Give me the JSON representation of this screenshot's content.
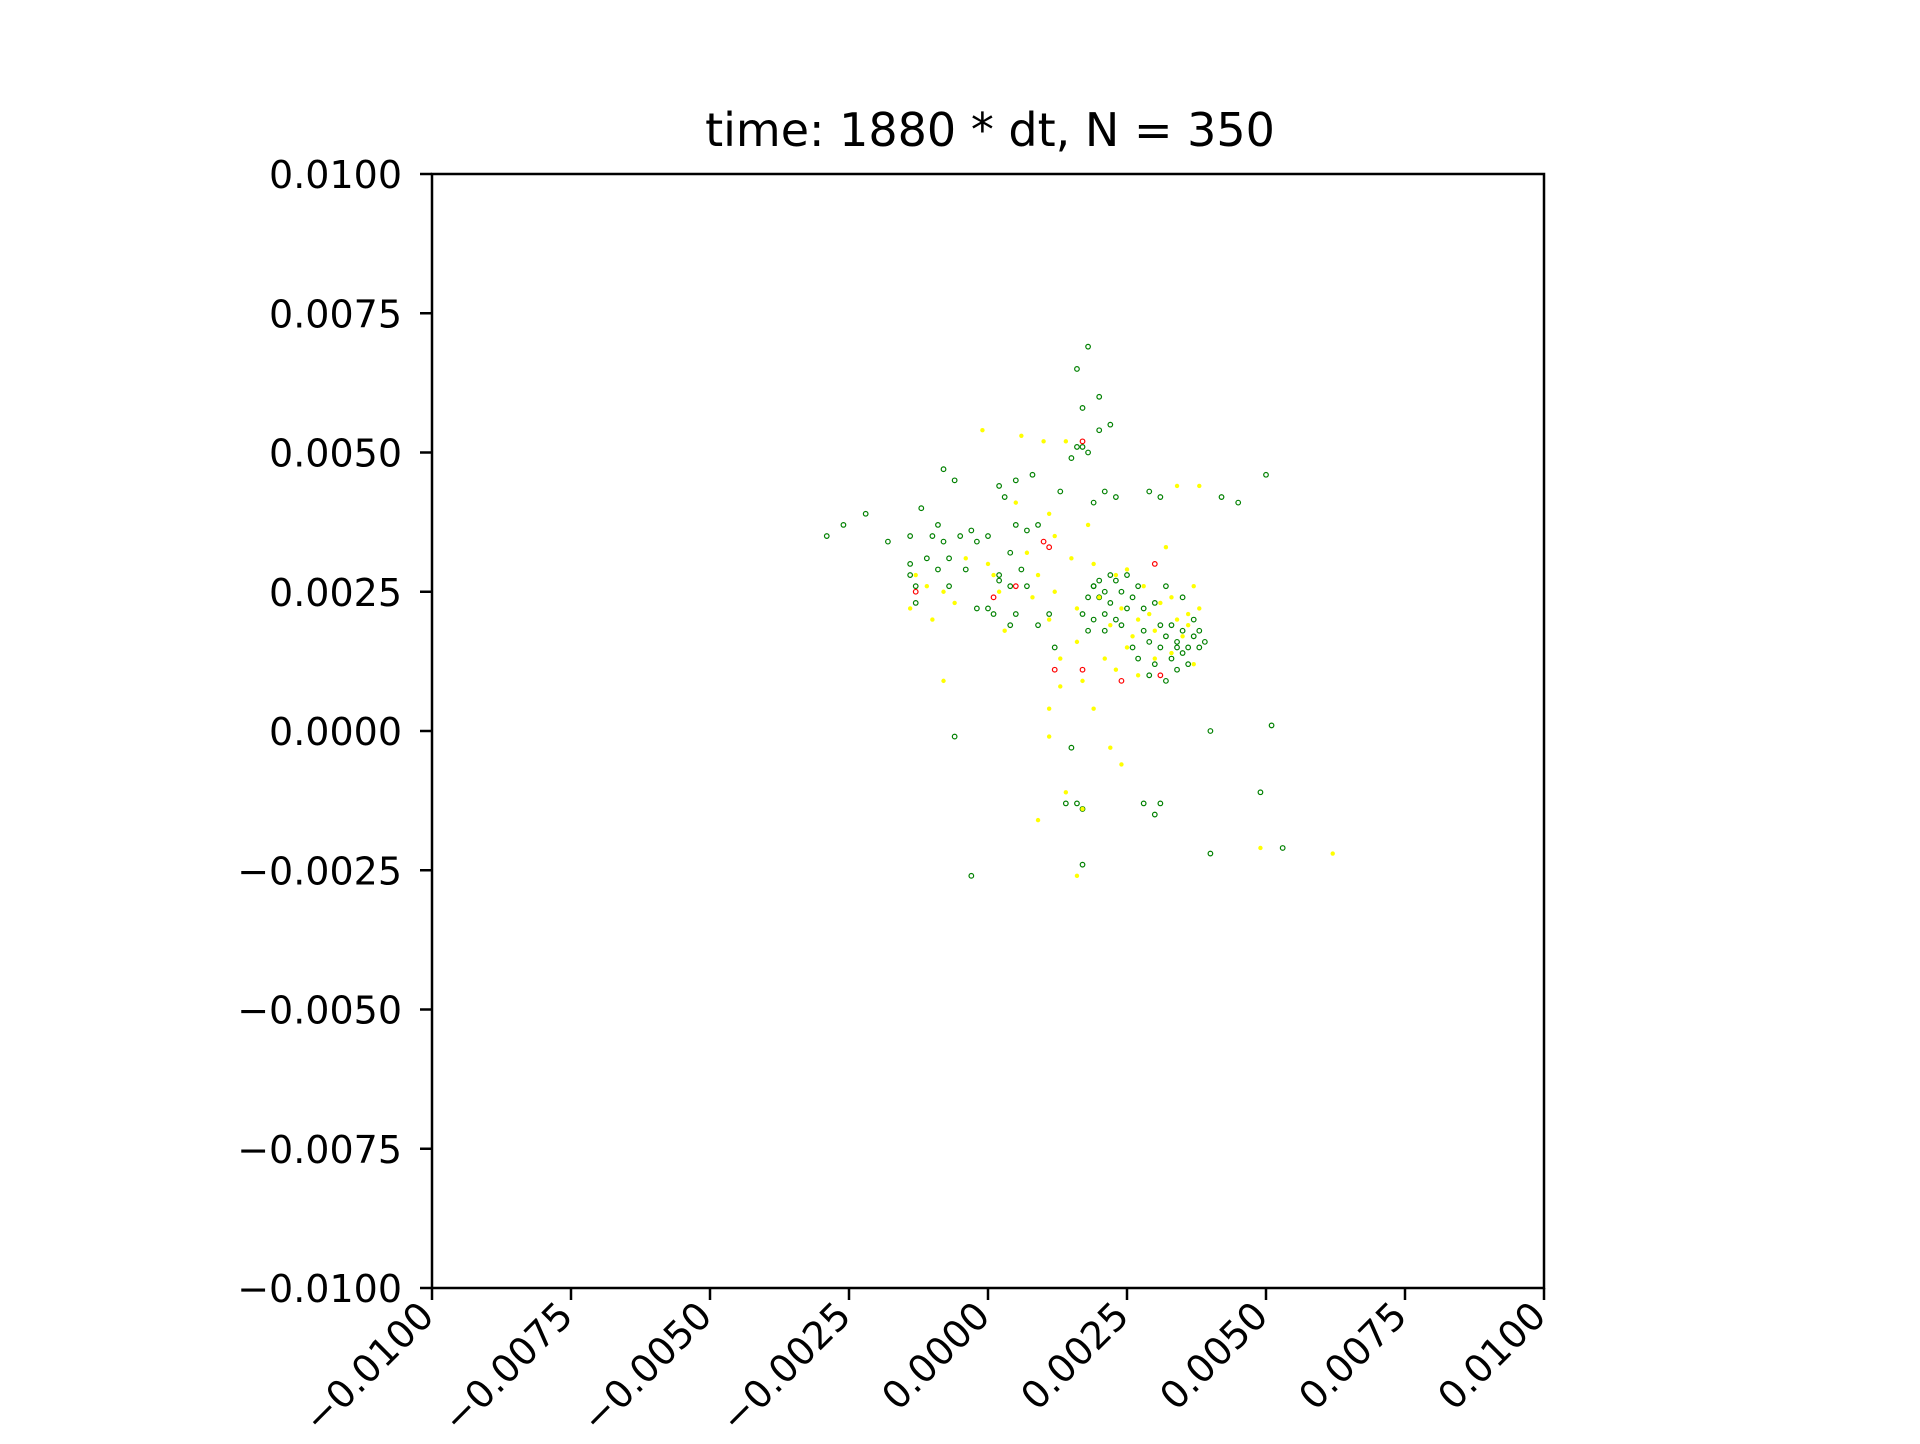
{
  "chart_data": {
    "type": "scatter",
    "title": "time: 1880 * dt, N = 350",
    "xlabel": "",
    "ylabel": "",
    "xlim": [
      -0.01,
      0.01
    ],
    "ylim": [
      -0.01,
      0.01
    ],
    "xticks": [
      "−0.0100",
      "−0.0075",
      "−0.0050",
      "−0.0025",
      "0.0000",
      "0.0025",
      "0.0050",
      "0.0075",
      "0.0100"
    ],
    "yticks": [
      "−0.0100",
      "−0.0075",
      "−0.0050",
      "−0.0025",
      "0.0000",
      "0.0025",
      "0.0050",
      "0.0075",
      "0.0100"
    ],
    "xtick_values": [
      -0.01,
      -0.0075,
      -0.005,
      -0.0025,
      0.0,
      0.0025,
      0.005,
      0.0075,
      0.01
    ],
    "ytick_values": [
      -0.01,
      -0.0075,
      -0.005,
      -0.0025,
      0.0,
      0.0025,
      0.005,
      0.0075,
      0.01
    ],
    "grid": false,
    "legend": "none",
    "series": [
      {
        "color": "#008000",
        "marker": "hollow-circle",
        "points": [
          [
            -0.0029,
            0.0035
          ],
          [
            -0.0026,
            0.0037
          ],
          [
            -0.0022,
            0.0039
          ],
          [
            -0.0018,
            0.0034
          ],
          [
            -0.0014,
            0.0035
          ],
          [
            -0.0014,
            0.003
          ],
          [
            -0.0014,
            0.0028
          ],
          [
            -0.0013,
            0.0026
          ],
          [
            -0.0013,
            0.0023
          ],
          [
            -0.0012,
            0.004
          ],
          [
            -0.0011,
            0.0031
          ],
          [
            -0.001,
            0.0035
          ],
          [
            -0.0009,
            0.0037
          ],
          [
            -0.0009,
            0.0029
          ],
          [
            -0.0008,
            0.0034
          ],
          [
            -0.0008,
            0.0047
          ],
          [
            -0.0007,
            0.0031
          ],
          [
            -0.0007,
            0.0026
          ],
          [
            -0.0006,
            0.0045
          ],
          [
            -0.0005,
            0.0035
          ],
          [
            -0.0004,
            0.0029
          ],
          [
            -0.0003,
            0.0036
          ],
          [
            -0.0002,
            0.0034
          ],
          [
            -0.0002,
            0.0022
          ],
          [
            0.0,
            0.0035
          ],
          [
            0.0,
            0.0022
          ],
          [
            0.0001,
            0.0021
          ],
          [
            0.0002,
            0.0044
          ],
          [
            0.0002,
            0.0027
          ],
          [
            0.0003,
            0.0042
          ],
          [
            0.0004,
            0.0019
          ],
          [
            0.0004,
            0.0032
          ],
          [
            0.0005,
            0.0037
          ],
          [
            0.0005,
            0.0045
          ],
          [
            0.0006,
            0.0029
          ],
          [
            0.0007,
            0.0026
          ],
          [
            0.0007,
            0.0036
          ],
          [
            0.0008,
            0.0046
          ],
          [
            0.0009,
            0.0037
          ],
          [
            0.0009,
            0.0019
          ],
          [
            0.0011,
            0.0021
          ],
          [
            0.0012,
            0.0015
          ],
          [
            0.0013,
            0.0043
          ],
          [
            0.0015,
            0.0049
          ],
          [
            0.0016,
            0.0051
          ],
          [
            0.0017,
            0.0058
          ],
          [
            0.0016,
            0.0065
          ],
          [
            0.0018,
            0.005
          ],
          [
            0.002,
            0.0054
          ],
          [
            0.0017,
            0.0051
          ],
          [
            0.0022,
            0.0055
          ],
          [
            0.0018,
            0.0024
          ],
          [
            0.0019,
            0.002
          ],
          [
            0.0017,
            0.0021
          ],
          [
            0.0018,
            0.0018
          ],
          [
            0.0019,
            0.0026
          ],
          [
            0.002,
            0.0027
          ],
          [
            0.0021,
            0.0025
          ],
          [
            0.0021,
            0.0021
          ],
          [
            0.0021,
            0.0018
          ],
          [
            0.0022,
            0.0028
          ],
          [
            0.0022,
            0.0023
          ],
          [
            0.0023,
            0.002
          ],
          [
            0.0023,
            0.0027
          ],
          [
            0.0024,
            0.0025
          ],
          [
            0.0024,
            0.0019
          ],
          [
            0.0025,
            0.0022
          ],
          [
            0.0025,
            0.0028
          ],
          [
            0.0026,
            0.0015
          ],
          [
            0.0026,
            0.0024
          ],
          [
            0.0027,
            0.0026
          ],
          [
            0.0027,
            0.0013
          ],
          [
            0.0028,
            0.0018
          ],
          [
            0.0028,
            0.0022
          ],
          [
            0.0029,
            0.0016
          ],
          [
            0.0029,
            0.001
          ],
          [
            0.003,
            0.0023
          ],
          [
            0.003,
            0.0012
          ],
          [
            0.0031,
            0.0019
          ],
          [
            0.0031,
            0.0015
          ],
          [
            0.0032,
            0.0026
          ],
          [
            0.0032,
            0.0017
          ],
          [
            0.0032,
            0.0009
          ],
          [
            0.0033,
            0.0019
          ],
          [
            0.0033,
            0.0013
          ],
          [
            0.0034,
            0.0016
          ],
          [
            0.0034,
            0.0011
          ],
          [
            0.0035,
            0.0018
          ],
          [
            0.0035,
            0.0014
          ],
          [
            0.0035,
            0.0024
          ],
          [
            0.0036,
            0.0015
          ],
          [
            0.0036,
            0.0012
          ],
          [
            0.0037,
            0.0017
          ],
          [
            0.0037,
            0.002
          ],
          [
            0.0038,
            0.0015
          ],
          [
            0.0038,
            0.0018
          ],
          [
            0.0039,
            0.0016
          ],
          [
            0.0019,
            0.0041
          ],
          [
            0.0021,
            0.0043
          ],
          [
            0.0023,
            0.0042
          ],
          [
            0.0029,
            0.0043
          ],
          [
            0.0031,
            0.0042
          ],
          [
            0.0042,
            0.0042
          ],
          [
            0.0045,
            0.0041
          ],
          [
            0.005,
            0.0046
          ],
          [
            0.0018,
            0.0069
          ],
          [
            0.002,
            0.006
          ],
          [
            0.004,
            0.0
          ],
          [
            0.0051,
            0.0001
          ],
          [
            -0.0006,
            -0.0001
          ],
          [
            0.0015,
            -0.0003
          ],
          [
            0.0014,
            -0.0013
          ],
          [
            0.0016,
            -0.0013
          ],
          [
            0.0017,
            -0.0014
          ],
          [
            0.0028,
            -0.0013
          ],
          [
            0.003,
            -0.0015
          ],
          [
            0.0031,
            -0.0013
          ],
          [
            0.0049,
            -0.0011
          ],
          [
            0.004,
            -0.0022
          ],
          [
            0.0053,
            -0.0021
          ],
          [
            0.0017,
            -0.0024
          ],
          [
            -0.0003,
            -0.0026
          ],
          [
            0.0002,
            0.0028
          ],
          [
            0.0004,
            0.0026
          ],
          [
            0.0005,
            0.0021
          ],
          [
            0.0019,
            0.0026
          ],
          [
            0.002,
            0.0024
          ],
          [
            0.0034,
            0.0015
          ]
        ]
      },
      {
        "color": "#ffff00",
        "marker": "filled-dot",
        "points": [
          [
            -0.0014,
            0.0022
          ],
          [
            -0.0013,
            0.0028
          ],
          [
            -0.0011,
            0.0026
          ],
          [
            -0.001,
            0.002
          ],
          [
            -0.0008,
            0.0025
          ],
          [
            -0.0006,
            0.0023
          ],
          [
            -0.0004,
            0.0031
          ],
          [
            -0.0001,
            0.0054
          ],
          [
            0.0,
            0.003
          ],
          [
            0.0001,
            0.0028
          ],
          [
            0.0002,
            0.0025
          ],
          [
            0.0003,
            0.0018
          ],
          [
            0.0005,
            0.0041
          ],
          [
            0.0006,
            0.0053
          ],
          [
            0.0007,
            0.0032
          ],
          [
            0.0008,
            0.0024
          ],
          [
            0.0009,
            0.0028
          ],
          [
            0.001,
            0.0052
          ],
          [
            0.0011,
            0.0039
          ],
          [
            0.0011,
            0.002
          ],
          [
            0.0012,
            0.0035
          ],
          [
            0.0012,
            0.0025
          ],
          [
            0.0013,
            0.0013
          ],
          [
            0.0013,
            0.0008
          ],
          [
            0.0014,
            0.0052
          ],
          [
            0.0015,
            0.0031
          ],
          [
            0.0016,
            0.0022
          ],
          [
            0.0016,
            0.0016
          ],
          [
            0.0017,
            0.0009
          ],
          [
            0.0018,
            0.0037
          ],
          [
            0.0019,
            0.003
          ],
          [
            0.002,
            0.0024
          ],
          [
            0.0021,
            0.0013
          ],
          [
            0.0022,
            0.0019
          ],
          [
            0.0023,
            0.0028
          ],
          [
            0.0023,
            0.0011
          ],
          [
            0.0024,
            0.0022
          ],
          [
            0.0025,
            0.0029
          ],
          [
            0.0025,
            0.0015
          ],
          [
            0.0026,
            0.0017
          ],
          [
            0.0027,
            0.002
          ],
          [
            0.0027,
            0.001
          ],
          [
            0.0028,
            0.0026
          ],
          [
            0.0029,
            0.0021
          ],
          [
            0.003,
            0.0018
          ],
          [
            0.003,
            0.0013
          ],
          [
            0.0031,
            0.0023
          ],
          [
            0.0032,
            0.0033
          ],
          [
            0.0033,
            0.0024
          ],
          [
            0.0033,
            0.0014
          ],
          [
            0.0034,
            0.0044
          ],
          [
            0.0034,
            0.002
          ],
          [
            0.0035,
            0.0017
          ],
          [
            0.0036,
            0.0021
          ],
          [
            0.0036,
            0.0019
          ],
          [
            0.0037,
            0.0026
          ],
          [
            0.0037,
            0.0012
          ],
          [
            0.0038,
            0.0044
          ],
          [
            0.0038,
            0.0022
          ],
          [
            -0.0008,
            0.0009
          ],
          [
            0.0011,
            0.0004
          ],
          [
            0.0011,
            -0.0001
          ],
          [
            0.0019,
            0.0004
          ],
          [
            0.0022,
            -0.0003
          ],
          [
            0.0024,
            -0.0006
          ],
          [
            0.0014,
            -0.0011
          ],
          [
            0.0017,
            -0.0014
          ],
          [
            0.0009,
            -0.0016
          ],
          [
            0.0049,
            -0.0021
          ],
          [
            0.0062,
            -0.0022
          ],
          [
            0.0016,
            -0.0026
          ]
        ]
      },
      {
        "color": "#ff0000",
        "marker": "hollow-circle",
        "points": [
          [
            -0.0013,
            0.0025
          ],
          [
            0.0001,
            0.0024
          ],
          [
            0.0005,
            0.0026
          ],
          [
            0.001,
            0.0034
          ],
          [
            0.0011,
            0.0033
          ],
          [
            0.0012,
            0.0011
          ],
          [
            0.0017,
            0.0052
          ],
          [
            0.0017,
            0.0011
          ],
          [
            0.0024,
            0.0009
          ],
          [
            0.003,
            0.003
          ],
          [
            0.0031,
            0.001
          ]
        ]
      }
    ]
  }
}
